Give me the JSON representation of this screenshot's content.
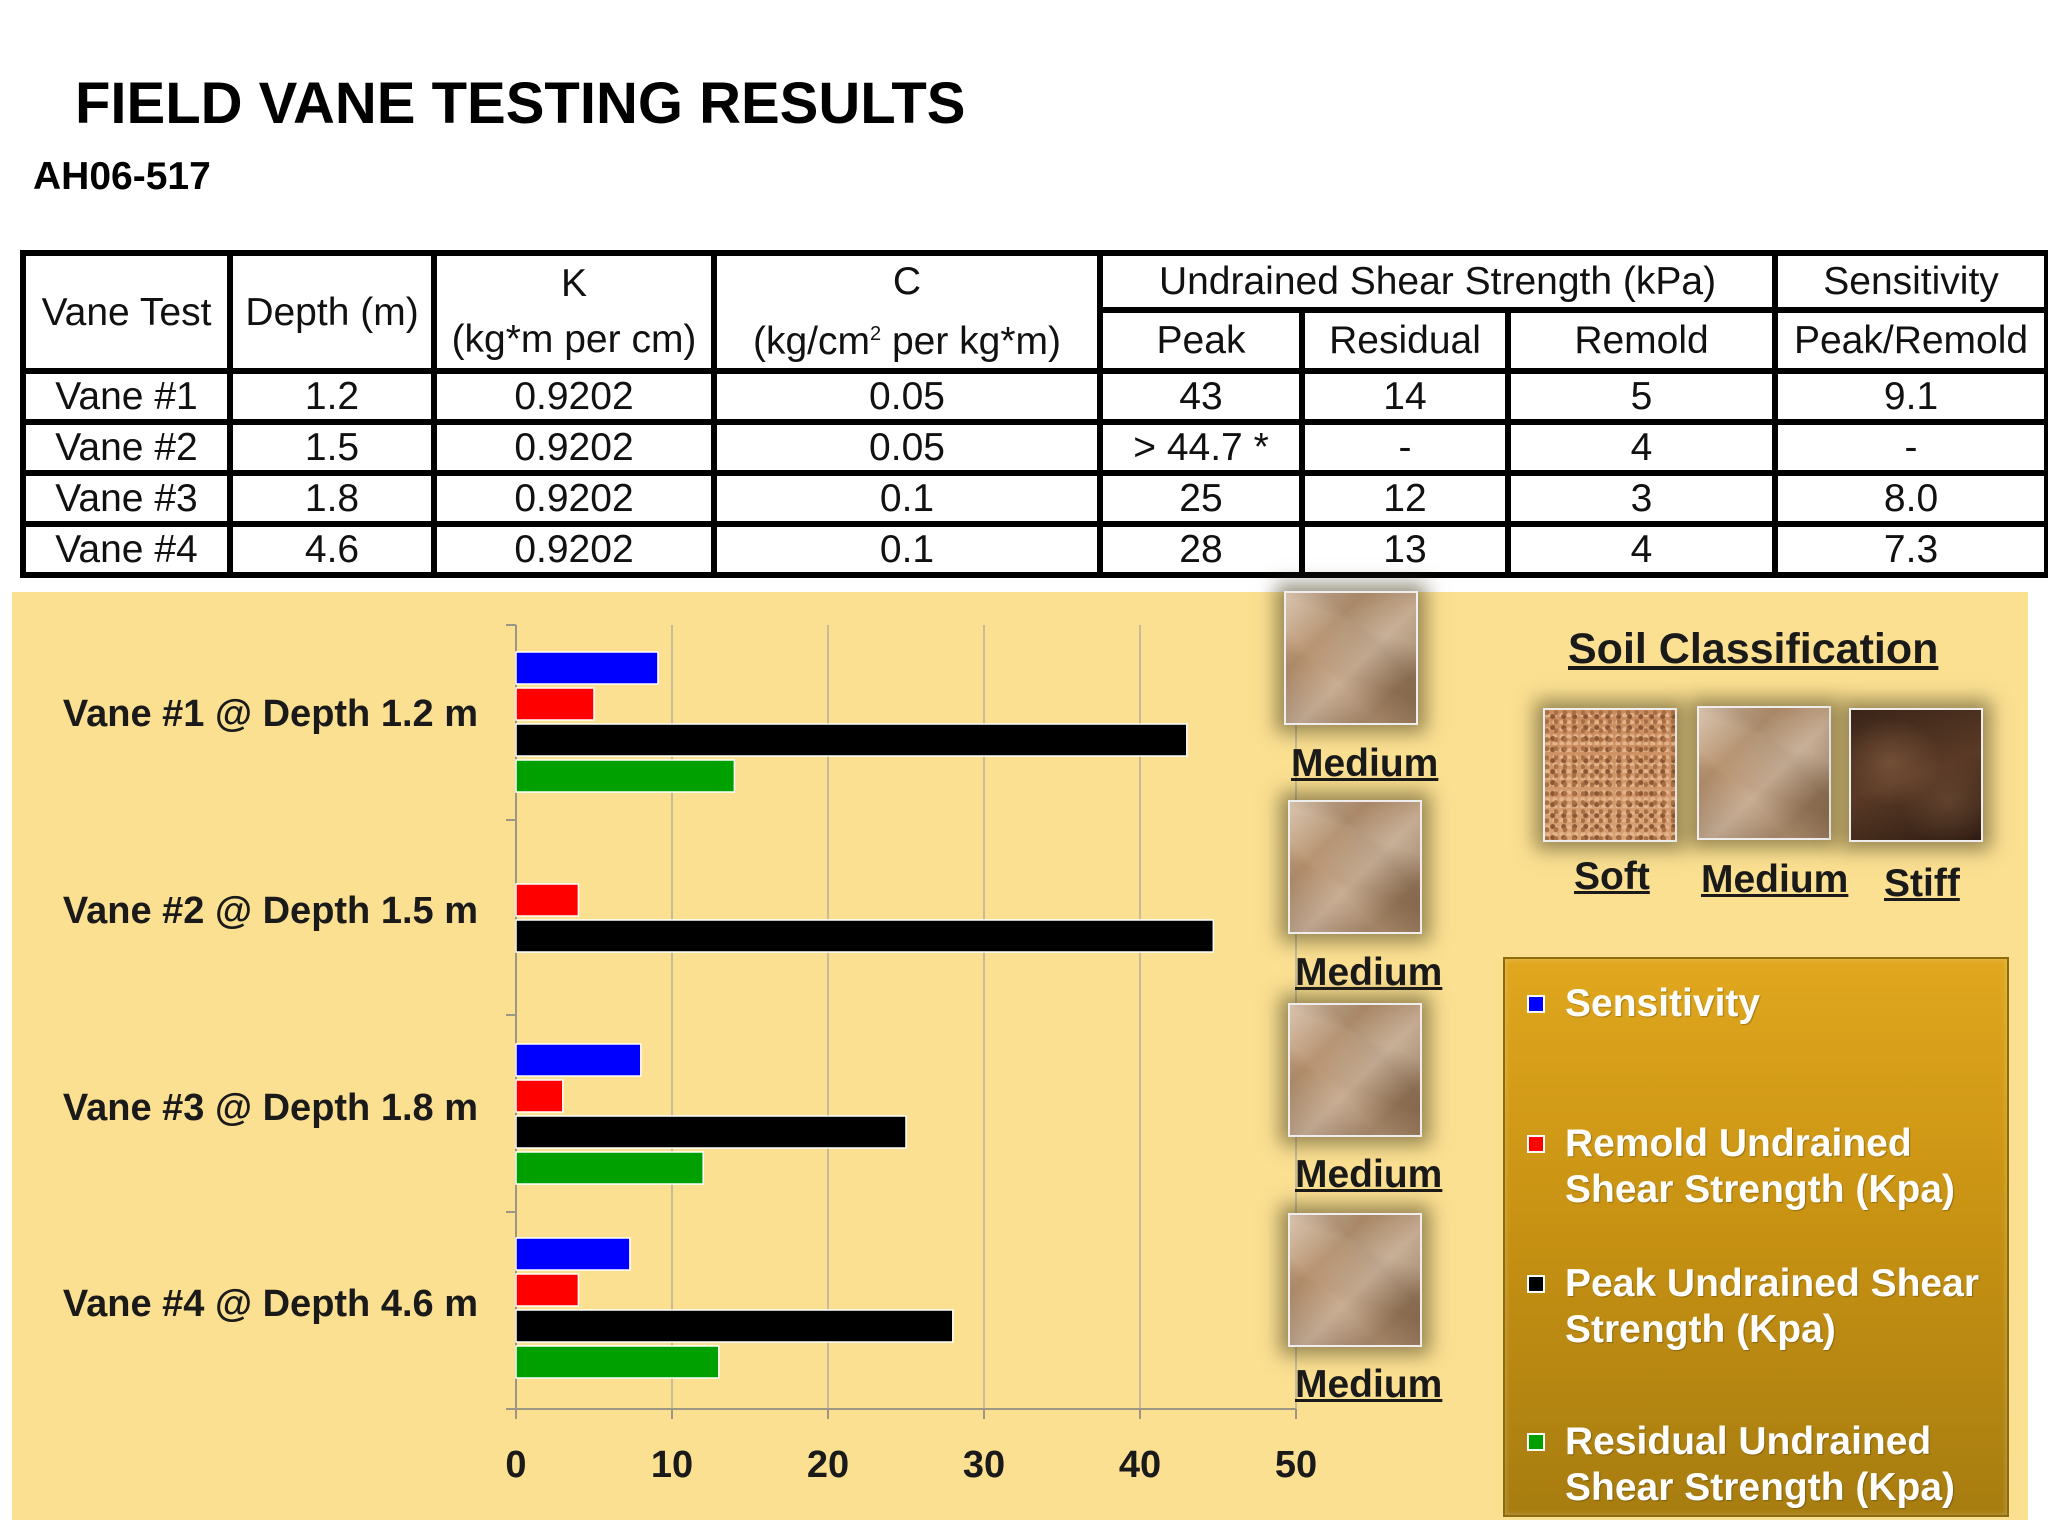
{
  "title": "FIELD VANE TESTING RESULTS",
  "subtitle": "AH06-517",
  "table": {
    "headers": {
      "vane_test": "Vane Test",
      "depth": "Depth (m)",
      "k_top": "K",
      "k_bottom": "(kg*m per cm)",
      "c_top": "C",
      "c_bottom_pre": "(kg/cm",
      "c_bottom_sup": "2",
      "c_bottom_post": " per kg*m)",
      "uss": "Undrained Shear Strength (kPa)",
      "peak": "Peak",
      "residual": "Residual",
      "remold": "Remold",
      "sens_top": "Sensitivity",
      "sens_bottom": "Peak/Remold"
    },
    "rows": [
      {
        "vane": "Vane #1",
        "depth": "1.2",
        "k": "0.9202",
        "c": "0.05",
        "peak": "43",
        "residual": "14",
        "remold": "5",
        "sensitivity": "9.1"
      },
      {
        "vane": "Vane #2",
        "depth": "1.5",
        "k": "0.9202",
        "c": "0.05",
        "peak": "> 44.7 *",
        "residual": "-",
        "remold": "4",
        "sensitivity": "-"
      },
      {
        "vane": "Vane #3",
        "depth": "1.8",
        "k": "0.9202",
        "c": "0.1",
        "peak": "25",
        "residual": "12",
        "remold": "3",
        "sensitivity": "8.0"
      },
      {
        "vane": "Vane #4",
        "depth": "4.6",
        "k": "0.9202",
        "c": "0.1",
        "peak": "28",
        "residual": "13",
        "remold": "4",
        "sensitivity": "7.3"
      }
    ]
  },
  "chart_data": {
    "type": "bar",
    "orientation": "horizontal",
    "categories": [
      "Vane #1 @ Depth 1.2 m",
      "Vane #2 @ Depth 1.5 m",
      "Vane #3 @ Depth 1.8 m",
      "Vane #4 @ Depth 4.6 m"
    ],
    "series": [
      {
        "name": "Sensitivity",
        "color": "#0000ff",
        "values": [
          9.1,
          null,
          8.0,
          7.3
        ]
      },
      {
        "name": "Remold Undrained Shear Strength (Kpa)",
        "color": "#ff0000",
        "values": [
          5,
          4,
          3,
          4
        ]
      },
      {
        "name": "Peak Undrained Shear Strength (Kpa)",
        "color": "#000000",
        "values": [
          43,
          44.7,
          25,
          28
        ]
      },
      {
        "name": "Residual Undrained Shear Strength (Kpa)",
        "color": "#00a000",
        "values": [
          14,
          null,
          12,
          13
        ]
      }
    ],
    "xlim": [
      0,
      50
    ],
    "xticks": [
      "0",
      "10",
      "20",
      "30",
      "40",
      "50"
    ],
    "grid": true,
    "legend_position": "right"
  },
  "soil_by_vane": [
    "Medium",
    "Medium",
    "Medium",
    "Medium"
  ],
  "soil_classification": {
    "title": "Soil Classification",
    "classes": [
      "Soft",
      "Medium",
      "Stiff"
    ]
  }
}
